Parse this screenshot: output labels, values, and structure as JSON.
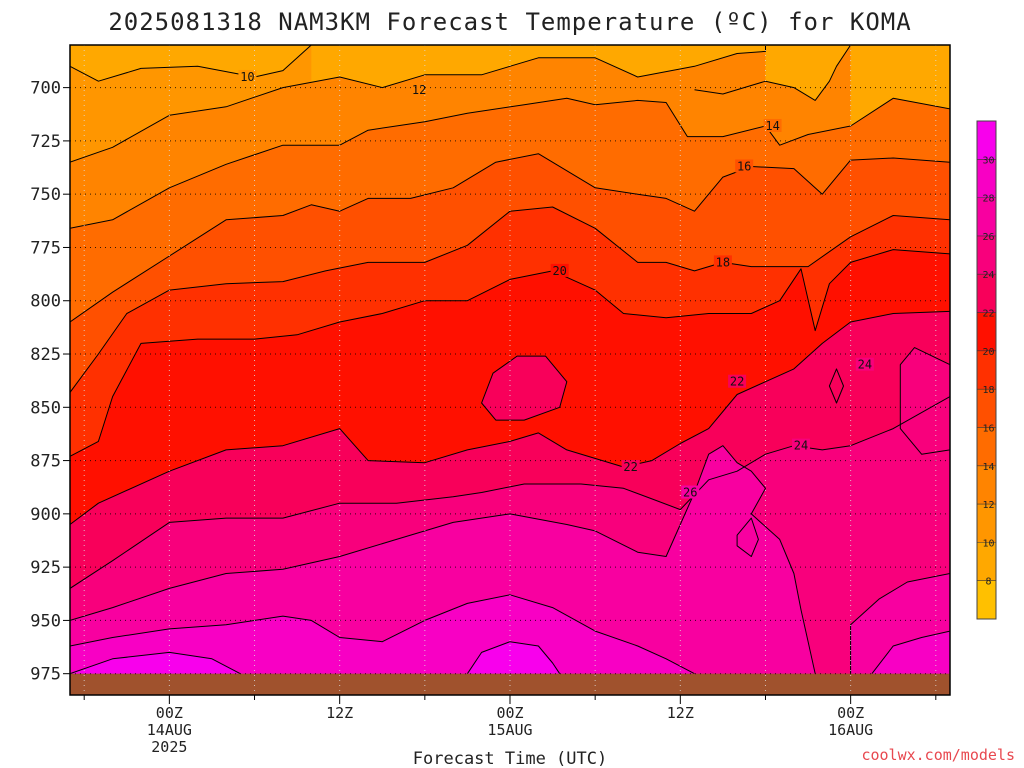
{
  "chart_data": {
    "type": "heatmap",
    "title": "2025081318 NAM3KM Forecast Temperature (ºC) for KOMA",
    "xlabel": "Forecast Time (UTC)",
    "ylabel": "",
    "credit": "coolwx.com/models",
    "y_axis": {
      "ticks": [
        700,
        725,
        750,
        775,
        800,
        825,
        850,
        875,
        900,
        925,
        950,
        975
      ],
      "top": 680,
      "bottom": 985,
      "inverted": true
    },
    "x_axis": {
      "start_hour": -7,
      "end_hour": 55,
      "ticks": [
        {
          "hour": 0,
          "line1": "00Z",
          "line2": "14AUG",
          "line3": "2025"
        },
        {
          "hour": 12,
          "line1": "12Z",
          "line2": "",
          "line3": ""
        },
        {
          "hour": 24,
          "line1": "00Z",
          "line2": "15AUG",
          "line3": ""
        },
        {
          "hour": 36,
          "line1": "12Z",
          "line2": "",
          "line3": ""
        },
        {
          "hour": 48,
          "line1": "00Z",
          "line2": "16AUG",
          "line3": ""
        }
      ]
    },
    "colorbar": {
      "levels": [
        6,
        8,
        10,
        12,
        14,
        16,
        18,
        20,
        22,
        24,
        26,
        28,
        30,
        32
      ],
      "labels": [
        8,
        10,
        12,
        14,
        16,
        18,
        20,
        22,
        24,
        26,
        28,
        30
      ],
      "colors": [
        "#ffc000",
        "#ffa800",
        "#ff9600",
        "#ff8400",
        "#ff6c00",
        "#ff5000",
        "#ff3000",
        "#ff1000",
        "#f8005a",
        "#f8007c",
        "#f800a0",
        "#f800c4",
        "#f800ec"
      ]
    },
    "ground": {
      "color": "#a0522d",
      "pressure": 975
    },
    "contours": [
      {
        "level": 10,
        "label_at_hour": 5.5,
        "points": [
          [
            -7,
            690
          ],
          [
            -5,
            697
          ],
          [
            -2,
            691
          ],
          [
            2,
            690
          ],
          [
            6,
            695
          ],
          [
            8,
            692
          ],
          [
            10,
            680
          ]
        ]
      },
      {
        "level": 12,
        "points": [
          [
            -7,
            735
          ],
          [
            -4,
            728
          ],
          [
            0,
            713
          ],
          [
            4,
            709
          ],
          [
            8,
            700
          ],
          [
            12,
            695
          ],
          [
            15,
            700
          ],
          [
            18,
            694
          ],
          [
            22,
            694
          ],
          [
            26,
            686
          ],
          [
            30,
            686
          ],
          [
            33,
            695
          ],
          [
            37,
            690
          ],
          [
            40,
            684
          ],
          [
            42,
            683
          ],
          [
            42,
            680
          ]
        ]
      },
      {
        "level": 12,
        "label_at_hour": 17.6,
        "points": [
          [
            37,
            701
          ],
          [
            39,
            703
          ],
          [
            42,
            697
          ],
          [
            44,
            700
          ],
          [
            45.5,
            706
          ],
          [
            46.5,
            697
          ],
          [
            47,
            690
          ],
          [
            48,
            680
          ]
        ]
      },
      {
        "level": 14,
        "label_at_hour": 42.5,
        "points": [
          [
            -7,
            766
          ],
          [
            -4,
            762
          ],
          [
            0,
            747
          ],
          [
            4,
            736
          ],
          [
            8,
            727
          ],
          [
            12,
            727
          ],
          [
            14,
            720
          ],
          [
            18,
            716
          ],
          [
            21,
            712
          ],
          [
            25,
            708
          ],
          [
            28,
            705
          ],
          [
            30,
            708
          ],
          [
            33,
            706
          ],
          [
            35,
            707
          ],
          [
            36.5,
            723
          ],
          [
            39,
            723
          ],
          [
            42,
            718
          ],
          [
            43,
            727
          ],
          [
            45,
            722
          ],
          [
            48,
            718
          ],
          [
            51,
            705
          ],
          [
            55,
            710
          ]
        ]
      },
      {
        "level": 16,
        "label_at_hour": 40.5,
        "points": [
          [
            -7,
            810
          ],
          [
            -4,
            796
          ],
          [
            0,
            779
          ],
          [
            4,
            762
          ],
          [
            8,
            760
          ],
          [
            10,
            755
          ],
          [
            12,
            758
          ],
          [
            14,
            752
          ],
          [
            17,
            752
          ],
          [
            20,
            747
          ],
          [
            23,
            735
          ],
          [
            26,
            731
          ],
          [
            30,
            747
          ],
          [
            33,
            750
          ],
          [
            35,
            752
          ],
          [
            37,
            758
          ],
          [
            39,
            742
          ],
          [
            41,
            737
          ],
          [
            44,
            738
          ],
          [
            46,
            750
          ],
          [
            48,
            734
          ],
          [
            51,
            733
          ],
          [
            55,
            735
          ]
        ]
      },
      {
        "level": 18,
        "label_at_hour": 39.0,
        "points": [
          [
            -7,
            843
          ],
          [
            -5,
            825
          ],
          [
            -3,
            806
          ],
          [
            0,
            795
          ],
          [
            4,
            792
          ],
          [
            8,
            791
          ],
          [
            11,
            786
          ],
          [
            14,
            782
          ],
          [
            18,
            782
          ],
          [
            21,
            774
          ],
          [
            24,
            758
          ],
          [
            27,
            756
          ],
          [
            30,
            766
          ],
          [
            33,
            782
          ],
          [
            35,
            782
          ],
          [
            37,
            786
          ],
          [
            39,
            782
          ],
          [
            41,
            784
          ],
          [
            45,
            784
          ],
          [
            48,
            770
          ],
          [
            51,
            760
          ],
          [
            55,
            762
          ]
        ]
      },
      {
        "level": 20,
        "label_at_hour": 27.5,
        "points": [
          [
            -7,
            873
          ],
          [
            -5,
            866
          ],
          [
            -4,
            845
          ],
          [
            -2,
            820
          ],
          [
            2,
            818
          ],
          [
            6,
            818
          ],
          [
            9,
            816
          ],
          [
            12,
            810
          ],
          [
            15,
            806
          ],
          [
            18,
            800
          ],
          [
            21,
            800
          ],
          [
            24,
            790
          ],
          [
            27,
            786
          ],
          [
            30,
            795
          ],
          [
            32,
            806
          ],
          [
            35,
            808
          ],
          [
            38,
            806
          ],
          [
            41,
            806
          ],
          [
            43,
            800
          ],
          [
            44.5,
            785
          ],
          [
            45.5,
            814
          ],
          [
            46.5,
            792
          ],
          [
            48,
            782
          ],
          [
            51,
            776
          ],
          [
            55,
            778
          ]
        ]
      },
      {
        "level": 22,
        "label_at_hour": 32.5,
        "points": [
          [
            -7,
            905
          ],
          [
            -5,
            895
          ],
          [
            0,
            880
          ],
          [
            4,
            870
          ],
          [
            8,
            868
          ],
          [
            12,
            860
          ],
          [
            14,
            875
          ],
          [
            18,
            876
          ],
          [
            21,
            870
          ],
          [
            24,
            866
          ],
          [
            26,
            862
          ],
          [
            28,
            870
          ],
          [
            32,
            878
          ],
          [
            34,
            875
          ],
          [
            36,
            867
          ],
          [
            38,
            860
          ],
          [
            40,
            844
          ],
          [
            42,
            838
          ],
          [
            44,
            832
          ],
          [
            46,
            820
          ],
          [
            48,
            810
          ],
          [
            51,
            806
          ],
          [
            55,
            805
          ]
        ]
      },
      {
        "level": 22,
        "label_at_hour": 40.0,
        "closed": true,
        "points": [
          [
            22,
            848
          ],
          [
            22.8,
            834
          ],
          [
            24.5,
            826
          ],
          [
            26.5,
            826
          ],
          [
            28,
            838
          ],
          [
            27.5,
            850
          ],
          [
            25,
            856
          ],
          [
            23,
            856
          ]
        ]
      },
      {
        "level": 22,
        "closed": true,
        "points": [
          [
            46.5,
            840
          ],
          [
            47,
            832
          ],
          [
            47.5,
            840
          ],
          [
            47,
            848
          ]
        ]
      },
      {
        "level": 24,
        "label_at_hour": 44.5,
        "points": [
          [
            -7,
            935
          ],
          [
            -4,
            922
          ],
          [
            0,
            904
          ],
          [
            4,
            902
          ],
          [
            8,
            902
          ],
          [
            12,
            895
          ],
          [
            16,
            895
          ],
          [
            20,
            892
          ],
          [
            22,
            890
          ],
          [
            25,
            886
          ],
          [
            29,
            886
          ],
          [
            32,
            888
          ],
          [
            34,
            893
          ],
          [
            36,
            898
          ],
          [
            38,
            884
          ],
          [
            40,
            880
          ],
          [
            42,
            872
          ],
          [
            44,
            868
          ],
          [
            46,
            870
          ],
          [
            48,
            868
          ],
          [
            51,
            860
          ],
          [
            55,
            845
          ]
        ]
      },
      {
        "level": 24,
        "label_at_hour": 49.0,
        "closed": true,
        "points": [
          [
            51.5,
            830
          ],
          [
            52.5,
            822
          ],
          [
            55,
            830
          ],
          [
            55,
            870
          ],
          [
            53,
            872
          ],
          [
            51.5,
            860
          ]
        ]
      },
      {
        "level": 26,
        "label_at_hour": 36.7,
        "points": [
          [
            -7,
            950
          ],
          [
            -4,
            944
          ],
          [
            0,
            935
          ],
          [
            4,
            928
          ],
          [
            8,
            926
          ],
          [
            12,
            920
          ],
          [
            16,
            912
          ],
          [
            20,
            904
          ],
          [
            24,
            900
          ],
          [
            28,
            905
          ],
          [
            30,
            908
          ],
          [
            33,
            918
          ],
          [
            35,
            920
          ],
          [
            37,
            890
          ],
          [
            38,
            872
          ],
          [
            39,
            868
          ],
          [
            40,
            876
          ],
          [
            41,
            880
          ],
          [
            42,
            888
          ],
          [
            41,
            900
          ],
          [
            43,
            912
          ],
          [
            44,
            928
          ],
          [
            44.5,
            945
          ],
          [
            45,
            960
          ],
          [
            45.5,
            975
          ]
        ]
      },
      {
        "level": 26,
        "closed": true,
        "points": [
          [
            40,
            910
          ],
          [
            41,
            902
          ],
          [
            41.5,
            912
          ],
          [
            41,
            920
          ],
          [
            40,
            915
          ]
        ]
      },
      {
        "level": 26,
        "points": [
          [
            48,
            975
          ],
          [
            48,
            952
          ],
          [
            50,
            940
          ],
          [
            52,
            932
          ],
          [
            55,
            928
          ]
        ]
      },
      {
        "level": 28,
        "points": [
          [
            -7,
            962
          ],
          [
            -4,
            958
          ],
          [
            0,
            954
          ],
          [
            4,
            952
          ],
          [
            8,
            948
          ],
          [
            10,
            950
          ],
          [
            12,
            958
          ],
          [
            15,
            960
          ],
          [
            18,
            950
          ],
          [
            21,
            942
          ],
          [
            24,
            938
          ],
          [
            27,
            944
          ],
          [
            30,
            955
          ],
          [
            33,
            962
          ],
          [
            35,
            968
          ],
          [
            37,
            975
          ]
        ]
      },
      {
        "level": 28,
        "points": [
          [
            49.5,
            975
          ],
          [
            51,
            962
          ],
          [
            53,
            958
          ],
          [
            55,
            955
          ]
        ]
      },
      {
        "level": 30,
        "points": [
          [
            -7,
            975
          ],
          [
            -4,
            968
          ],
          [
            0,
            965
          ],
          [
            3,
            968
          ],
          [
            5,
            975
          ]
        ]
      },
      {
        "level": 30,
        "points": [
          [
            21,
            975
          ],
          [
            22,
            965
          ],
          [
            24,
            960
          ],
          [
            26,
            962
          ],
          [
            27,
            970
          ],
          [
            27.5,
            975
          ]
        ]
      }
    ]
  }
}
